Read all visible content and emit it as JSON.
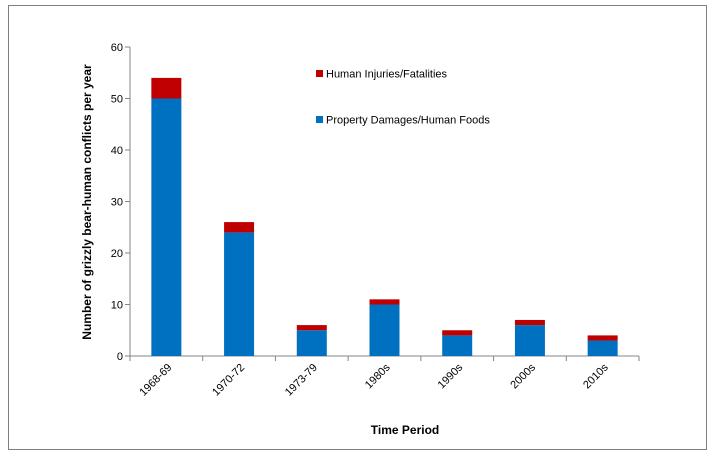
{
  "chart_data": {
    "type": "bar",
    "stacked": true,
    "categories": [
      "1968-69",
      "1970-72",
      "1973-79",
      "1980s",
      "1990s",
      "2000s",
      "2010s"
    ],
    "series": [
      {
        "name": "Property Damages/Human Foods",
        "values": [
          50,
          24,
          5,
          10,
          4,
          6,
          3
        ],
        "color": "#0070c0"
      },
      {
        "name": "Human Injuries/Fatalities",
        "values": [
          4,
          2,
          1,
          1,
          1,
          1,
          1
        ],
        "color": "#c00000"
      }
    ],
    "legend_order": [
      1,
      0
    ],
    "legend_position": "top-right inside plot",
    "xlabel": "Time Period",
    "ylabel": "Number of grizzly bear-human conflicts per year",
    "ylim": [
      0,
      60
    ],
    "yticks": [
      0,
      10,
      20,
      30,
      40,
      50,
      60
    ],
    "grid": false
  }
}
